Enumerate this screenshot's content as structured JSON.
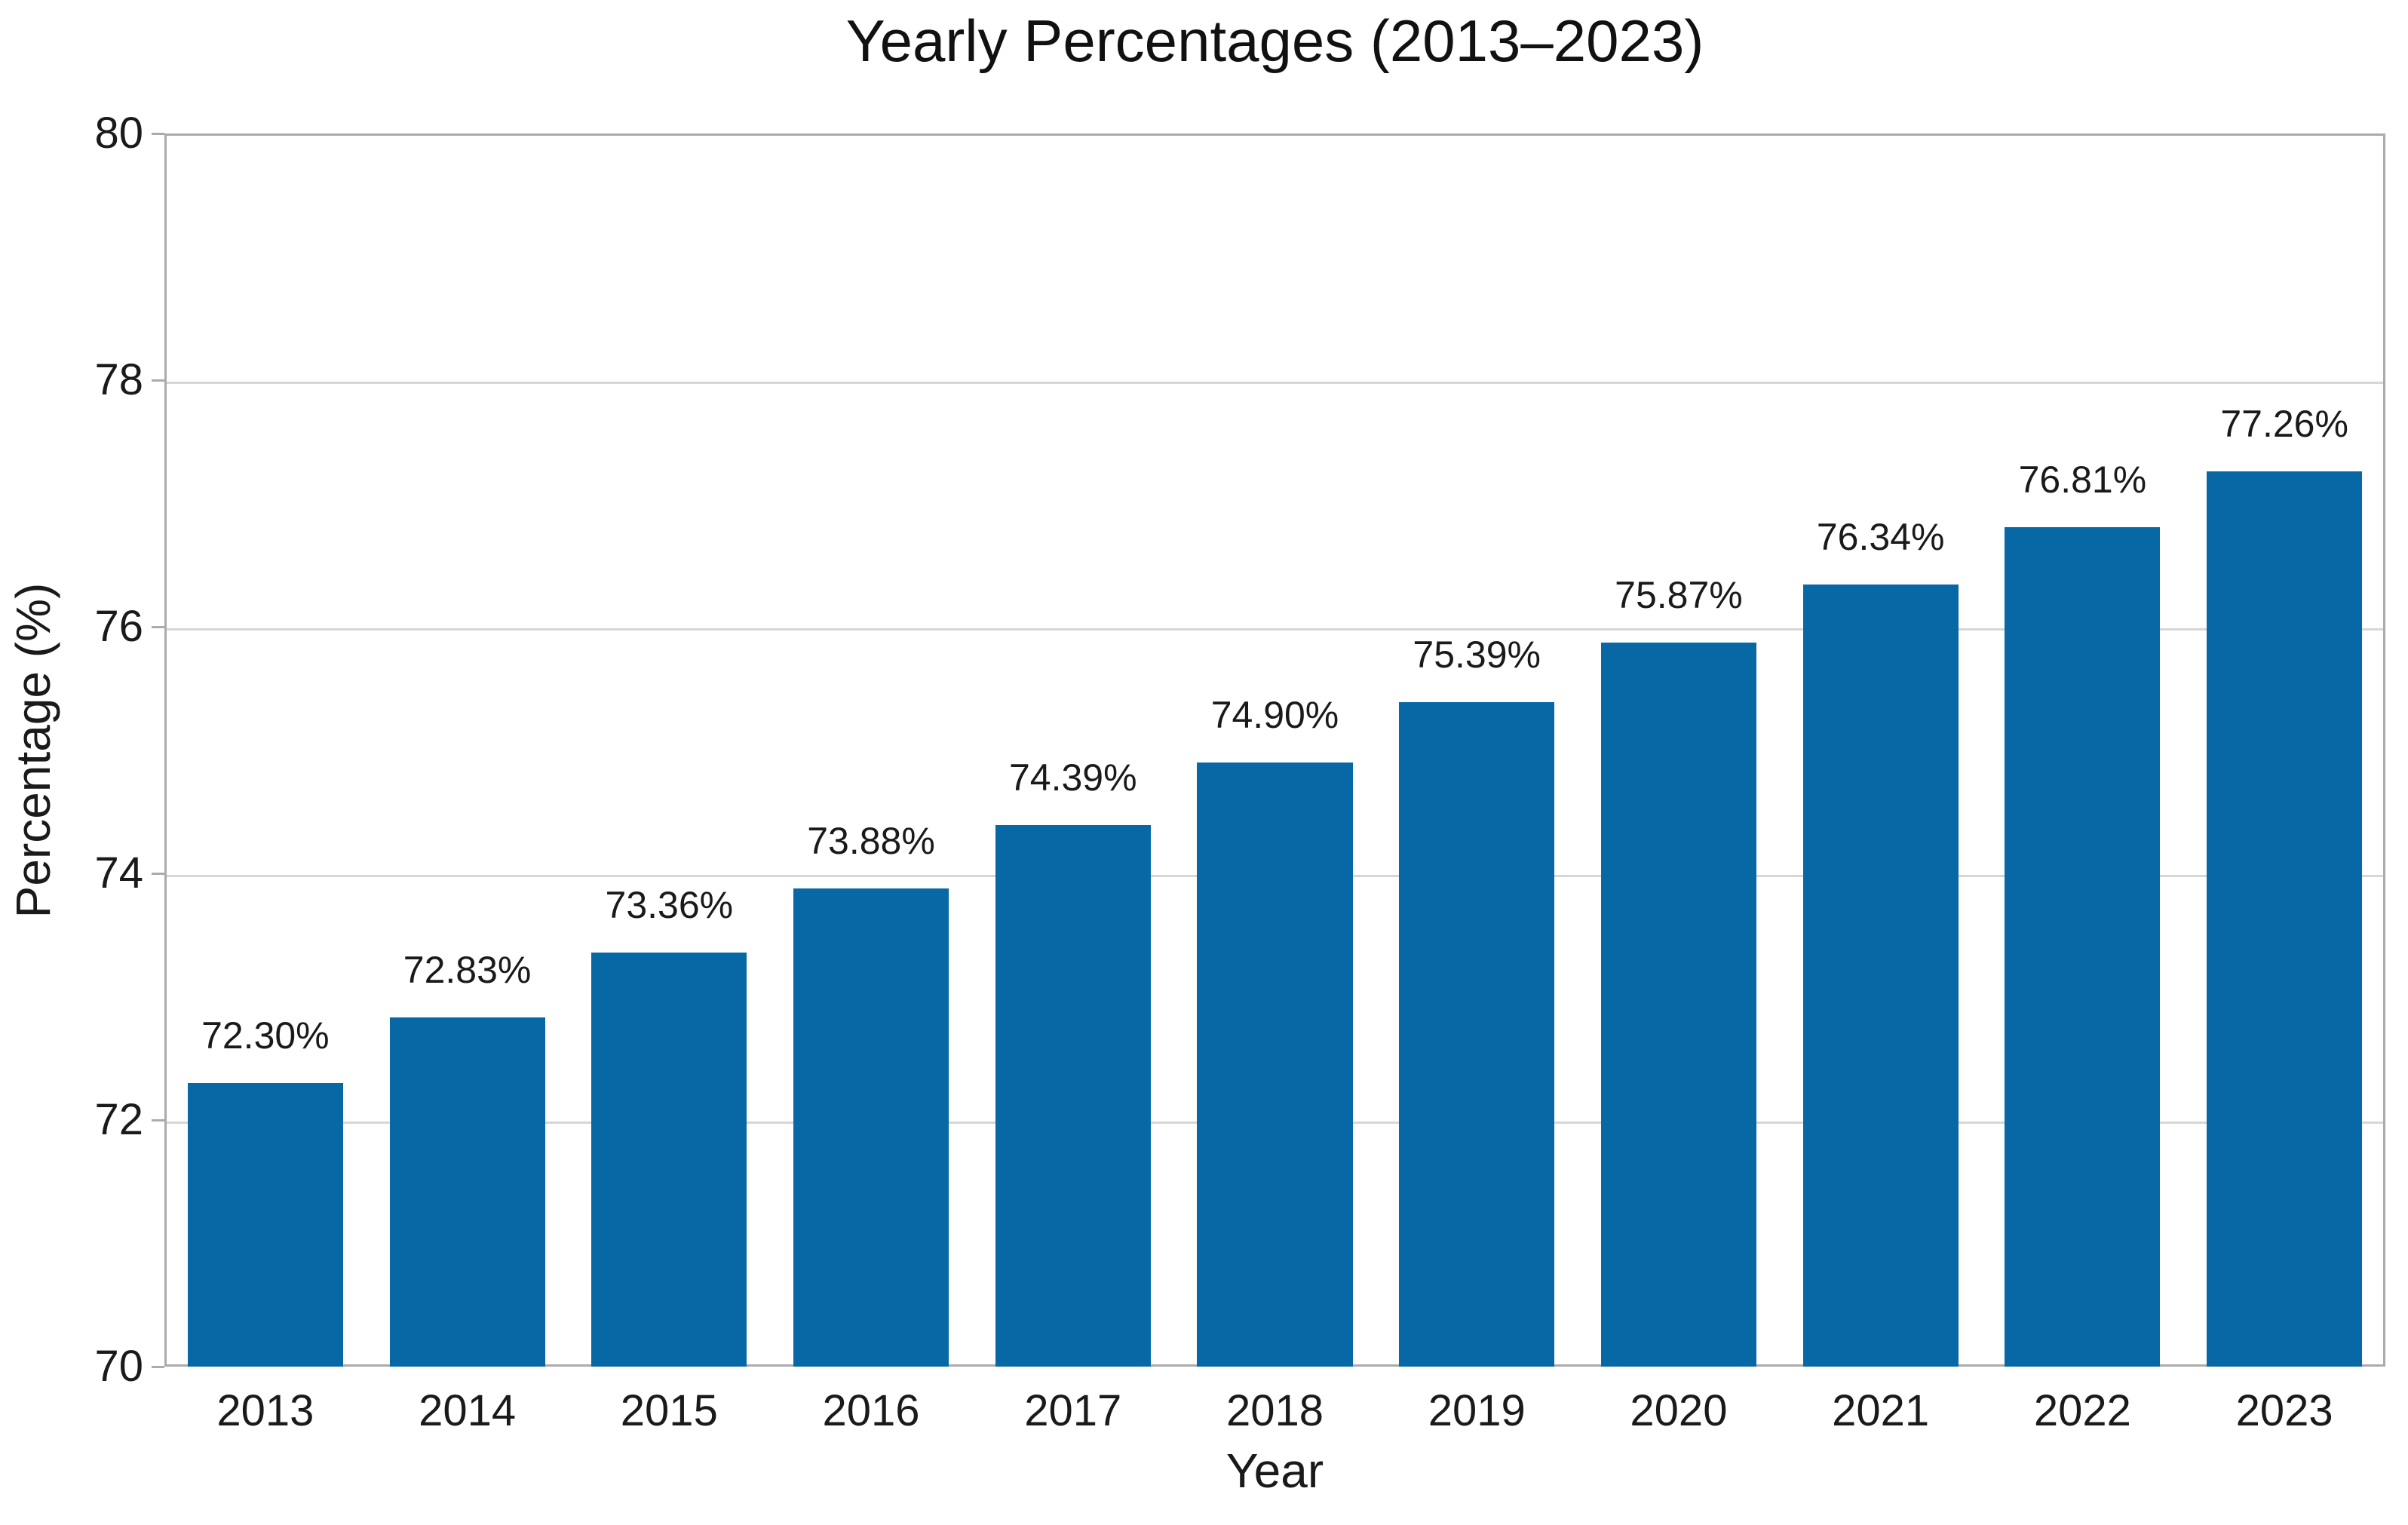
{
  "chart_data": {
    "type": "bar",
    "title": "Yearly Percentages (2013–2023)",
    "xlabel": "Year",
    "ylabel": "Percentage (%)",
    "categories": [
      "2013",
      "2014",
      "2015",
      "2016",
      "2017",
      "2018",
      "2019",
      "2020",
      "2021",
      "2022",
      "2023"
    ],
    "values": [
      72.3,
      72.83,
      73.36,
      73.88,
      74.39,
      74.9,
      75.39,
      75.87,
      76.34,
      76.81,
      77.26
    ],
    "bar_labels": [
      "72.30%",
      "72.83%",
      "73.36%",
      "73.88%",
      "74.39%",
      "74.90%",
      "75.39%",
      "75.87%",
      "76.34%",
      "76.81%",
      "77.26%"
    ],
    "ylim": [
      70,
      80
    ],
    "yticks": [
      70,
      72,
      74,
      76,
      78,
      80
    ],
    "grid": "horizontal",
    "legend": "none",
    "bar_width_fraction": 0.77,
    "colors": {
      "bar": "#0868a5",
      "grid": "#d6d6d6",
      "spine": "#ababab",
      "text": "#1a1a1a",
      "background": "#ffffff"
    }
  }
}
